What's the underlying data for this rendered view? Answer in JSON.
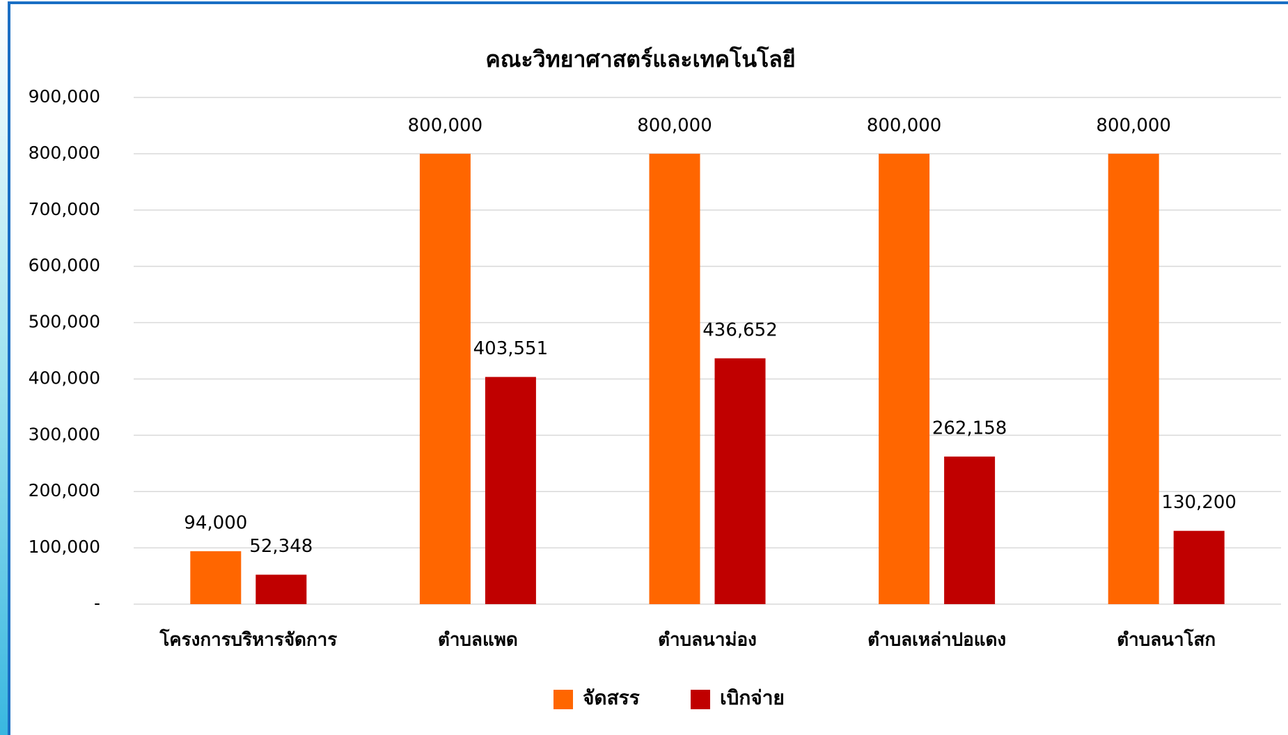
{
  "chart_data": {
    "type": "bar",
    "title": "คณะวิทยาศาสตร์และเทคโนโลยี",
    "categories": [
      "โครงการบริหารจัดการ",
      "ตำบลแพด",
      "ตำบลนาม่อง",
      "ตำบลเหล่าปอแดง",
      "ตำบลนาโสก"
    ],
    "series": [
      {
        "name": "จัดสรร",
        "color": "#ff6600",
        "values": [
          94000,
          800000,
          800000,
          800000,
          800000
        ],
        "value_labels": [
          "94,000",
          "800,000",
          "800,000",
          "800,000",
          "800,000"
        ]
      },
      {
        "name": "เบิกจ่าย",
        "color": "#c00000",
        "values": [
          52348,
          403551,
          436652,
          262158,
          130200
        ],
        "value_labels": [
          "52,348",
          "403,551",
          "436,652",
          "262,158",
          "130,200"
        ]
      }
    ],
    "ylim": [
      0,
      900000
    ],
    "yticks": [
      {
        "value": 0,
        "label": "-"
      },
      {
        "value": 100000,
        "label": "100,000"
      },
      {
        "value": 200000,
        "label": "200,000"
      },
      {
        "value": 300000,
        "label": "300,000"
      },
      {
        "value": 400000,
        "label": "400,000"
      },
      {
        "value": 500000,
        "label": "500,000"
      },
      {
        "value": 600000,
        "label": "600,000"
      },
      {
        "value": 700000,
        "label": "700,000"
      },
      {
        "value": 800000,
        "label": "800,000"
      },
      {
        "value": 900000,
        "label": "900,000"
      }
    ],
    "grid": true,
    "legend": "bottom"
  }
}
